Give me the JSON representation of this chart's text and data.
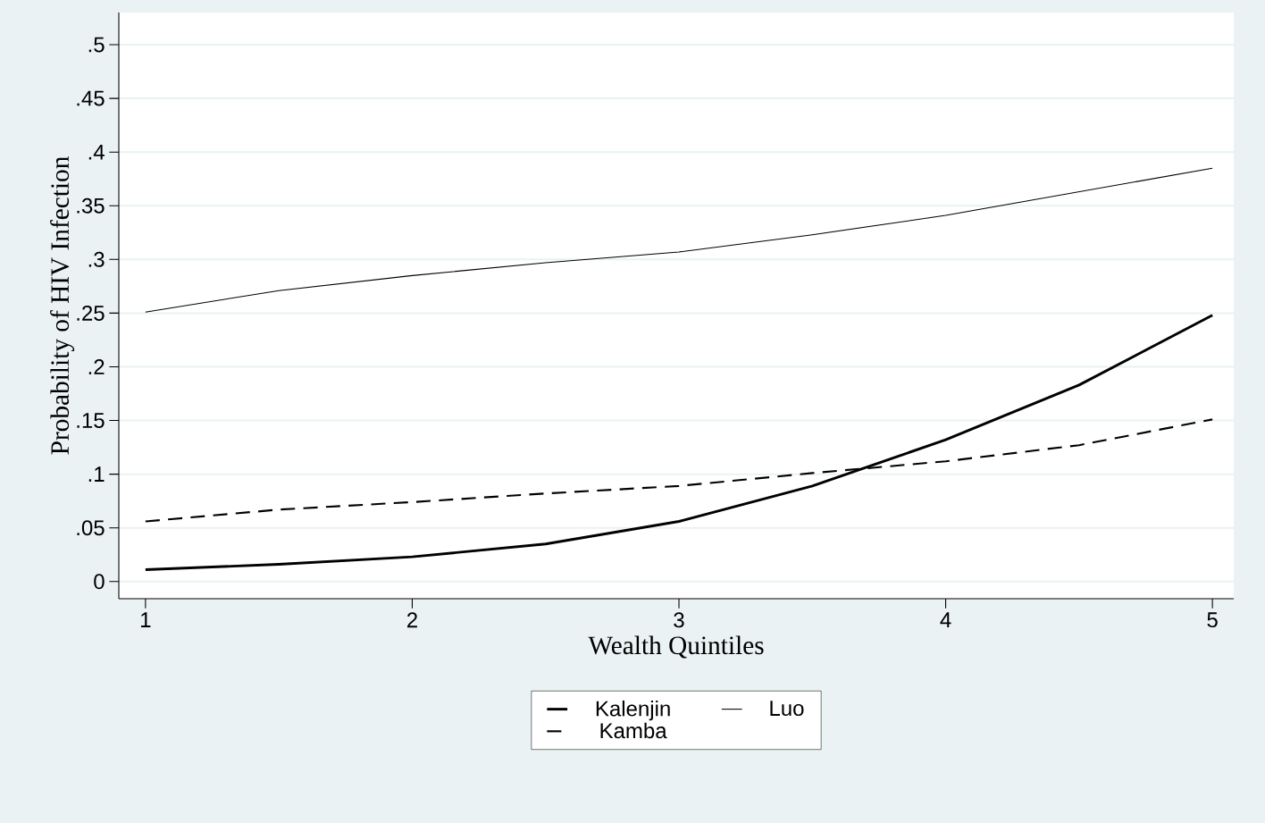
{
  "chart_data": {
    "type": "line",
    "xlabel": "Wealth Quintiles",
    "ylabel": "Probability of HIV Infection",
    "x": [
      1,
      1.5,
      2,
      2.5,
      3,
      3.5,
      4,
      4.5,
      5
    ],
    "series": [
      {
        "name": "Kalenjin",
        "color": "#000000",
        "line_style": "solid",
        "values": [
          0.011,
          0.016,
          0.023,
          0.035,
          0.056,
          0.089,
          0.132,
          0.183,
          0.248
        ]
      },
      {
        "name": "Luo",
        "color": "#000000",
        "line_style": "solid",
        "values": [
          0.251,
          0.271,
          0.285,
          0.297,
          0.307,
          0.323,
          0.341,
          0.363,
          0.385
        ]
      },
      {
        "name": "Kamba",
        "color": "#000000",
        "line_style": "dashed",
        "values": [
          0.056,
          0.067,
          0.074,
          0.082,
          0.089,
          0.101,
          0.112,
          0.127,
          0.151
        ]
      }
    ],
    "xlim": [
      0.9,
      5.08
    ],
    "ylim": [
      -0.016,
      0.53
    ],
    "xticks": [
      1,
      2,
      3,
      4,
      5
    ],
    "yticks": [
      0,
      {
        "value": 0.05,
        "label": ".05"
      },
      {
        "value": 0.1,
        "label": ".1"
      },
      {
        "value": 0.15,
        "label": ".15"
      },
      {
        "value": 0.2,
        "label": ".2"
      },
      {
        "value": 0.25,
        "label": ".25"
      },
      {
        "value": 0.3,
        "label": ".3"
      },
      {
        "value": 0.35,
        "label": ".35"
      },
      {
        "value": 0.4,
        "label": ".4"
      },
      {
        "value": 0.45,
        "label": ".45"
      },
      {
        "value": 0.5,
        "label": ".5"
      }
    ],
    "grid": "y",
    "legend": "bottom"
  }
}
